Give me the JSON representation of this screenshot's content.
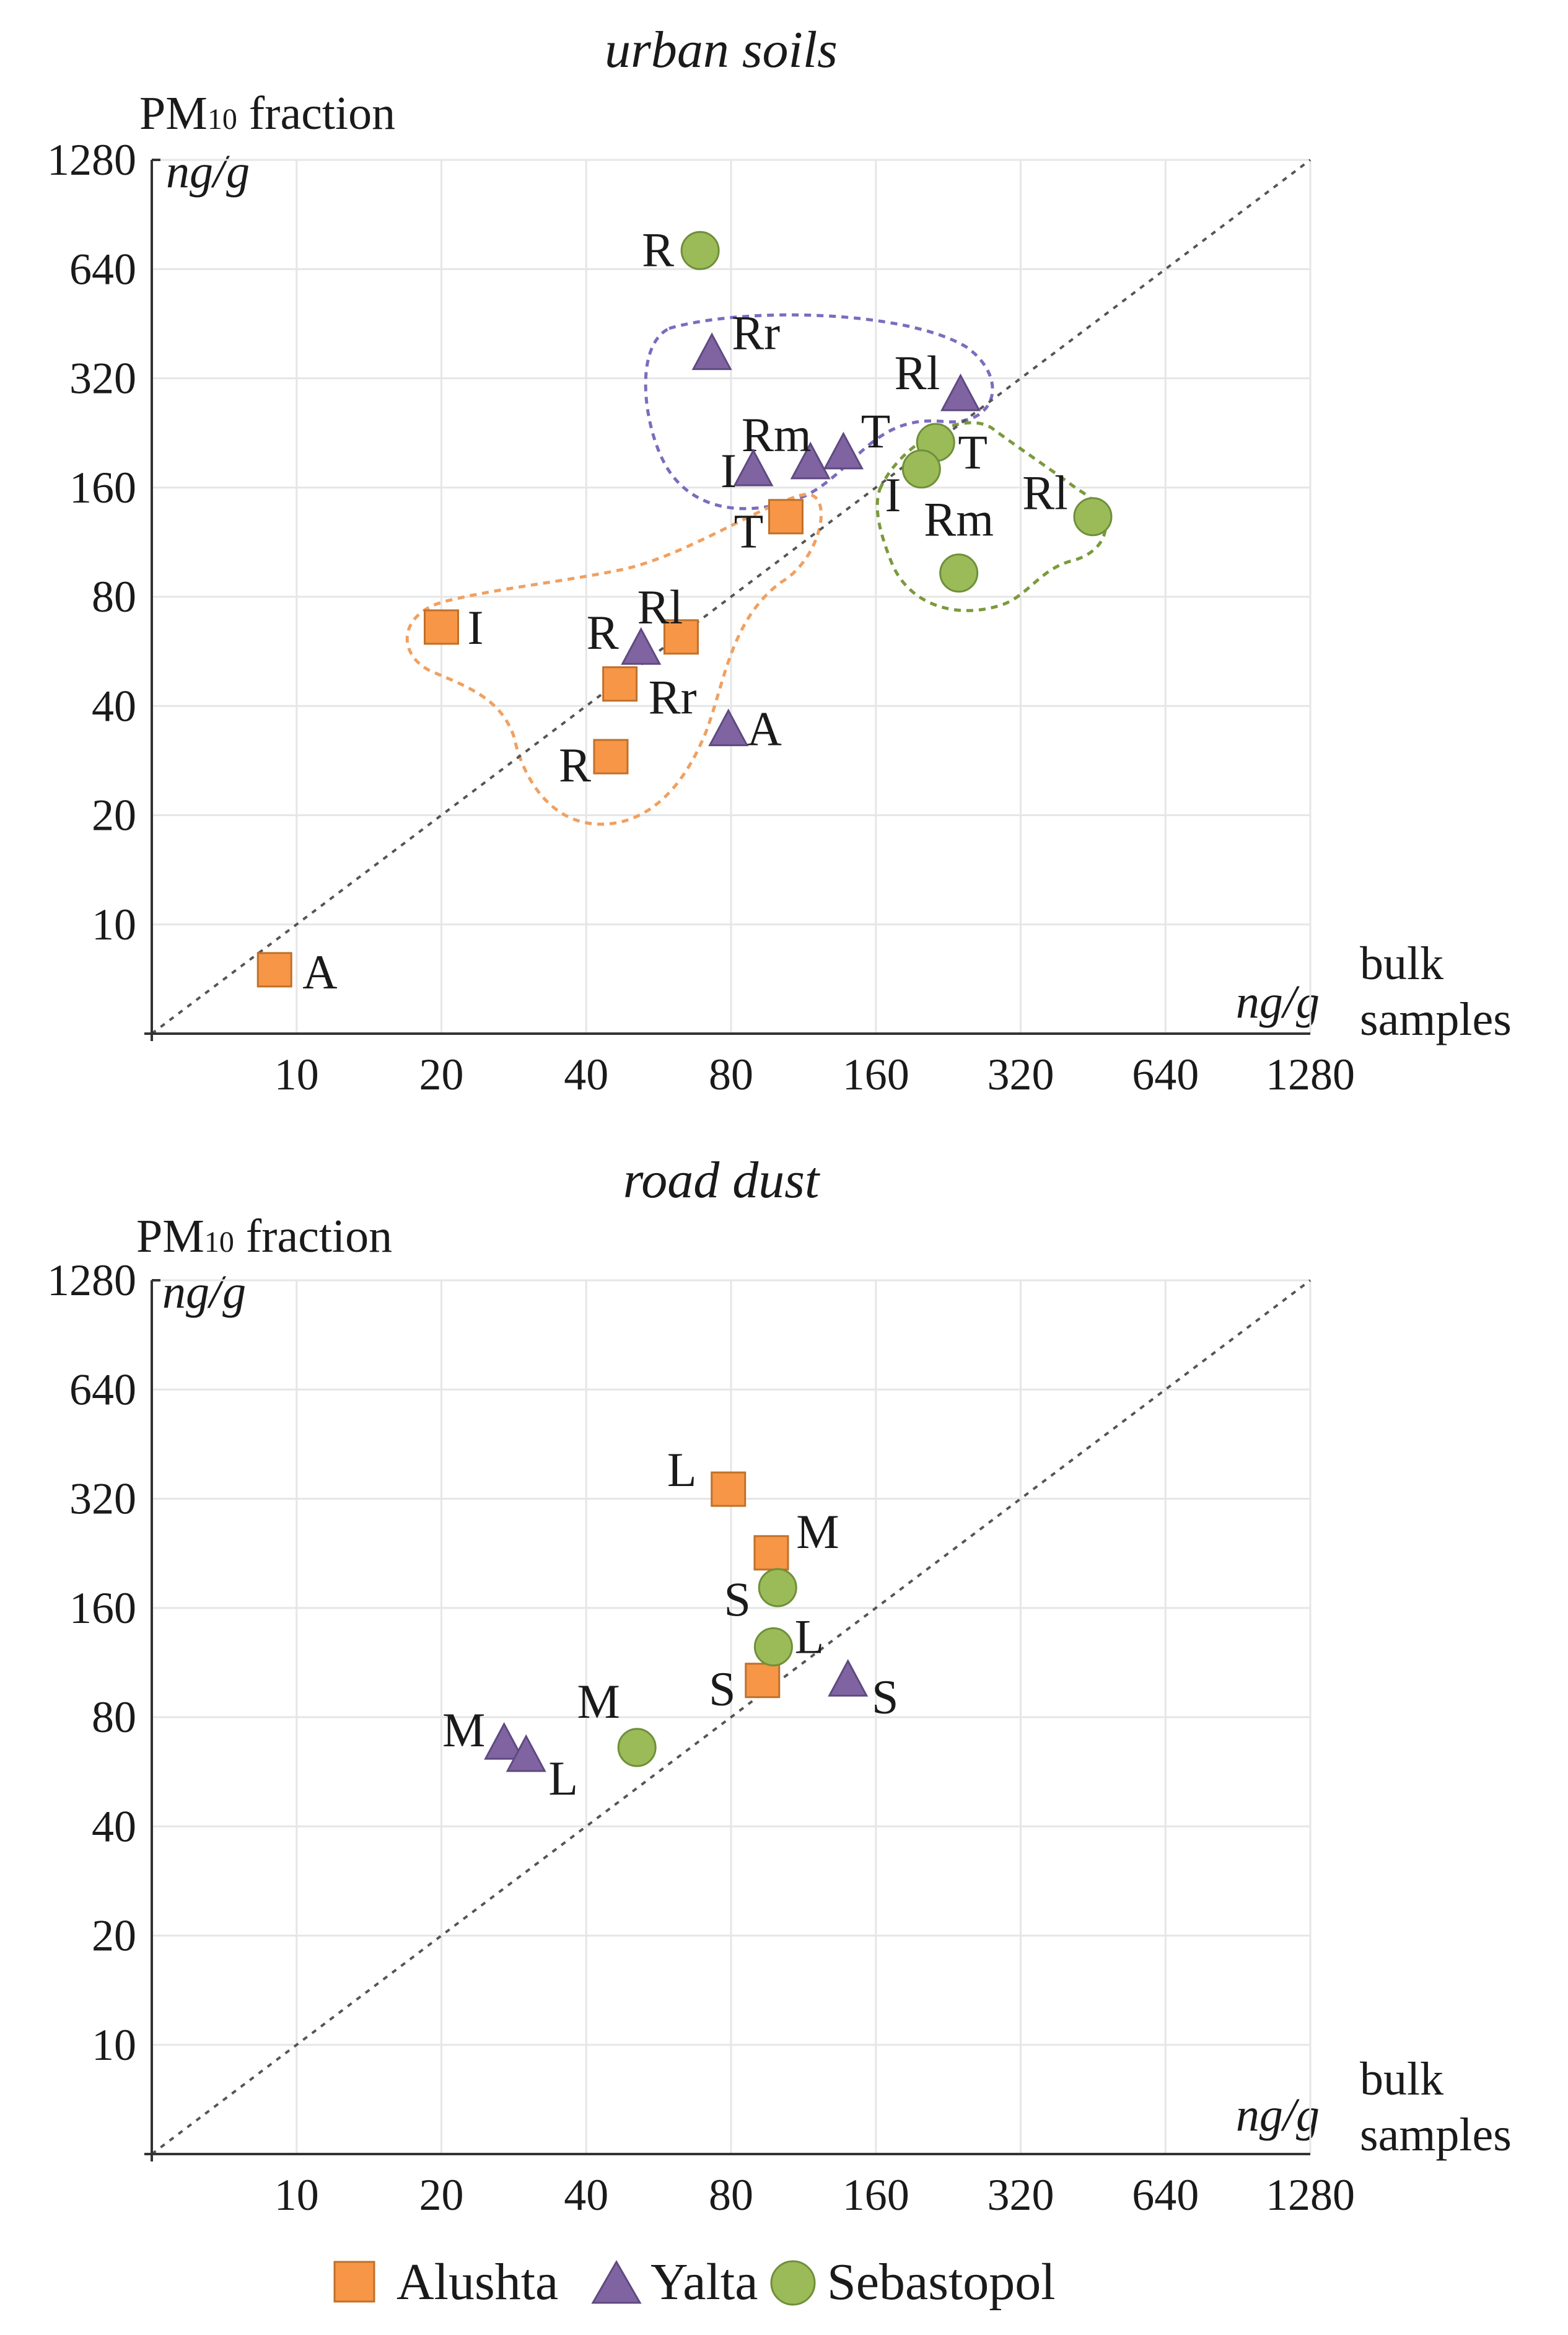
{
  "chart_data": [
    {
      "type": "scatter",
      "title": "urban soils",
      "ylabel_main": "PM",
      "ylabel_sub": "10",
      "ylabel_rest": " fraction",
      "yunit": "ng/g",
      "xunit": "ng/g",
      "xlabel_line1": "bulk",
      "xlabel_line2": "samples",
      "xscale": "log2",
      "yscale": "log2",
      "xlim": [
        5,
        1280
      ],
      "ylim": [
        5,
        1280
      ],
      "xticks": [
        "10",
        "20",
        "40",
        "80",
        "160",
        "320",
        "640",
        "1280"
      ],
      "yticks": [
        "1280",
        "640",
        "320",
        "160",
        "80",
        "40",
        "20",
        "10"
      ],
      "diagonal": "y = x",
      "series": [
        {
          "name": "Alushta",
          "marker": "square",
          "color": "#f79646",
          "points": [
            {
              "label": "A",
              "x": 9,
              "y": 7.5
            },
            {
              "label": "I",
              "x": 20,
              "y": 66
            },
            {
              "label": "Rl",
              "x": 63,
              "y": 62
            },
            {
              "label": "Rr",
              "x": 47,
              "y": 46
            },
            {
              "label": "R",
              "x": 45,
              "y": 29
            },
            {
              "label": "T",
              "x": 104,
              "y": 133
            }
          ]
        },
        {
          "name": "Yalta",
          "marker": "triangle",
          "color": "#8064a2",
          "points": [
            {
              "label": "Rr",
              "x": 73,
              "y": 370
            },
            {
              "label": "Rl",
              "x": 240,
              "y": 285
            },
            {
              "label": "Rm",
              "x": 117,
              "y": 185
            },
            {
              "label": "T",
              "x": 137,
              "y": 197
            },
            {
              "label": "I",
              "x": 89,
              "y": 177
            },
            {
              "label": "R",
              "x": 52,
              "y": 57
            },
            {
              "label": "A",
              "x": 79,
              "y": 34
            }
          ]
        },
        {
          "name": "Sebastopol",
          "marker": "circle",
          "color": "#9bbb59",
          "points": [
            {
              "label": "R",
              "x": 69,
              "y": 720
            },
            {
              "label": "T",
              "x": 213,
              "y": 213
            },
            {
              "label": "I",
              "x": 199,
              "y": 180
            },
            {
              "label": "Rl",
              "x": 452,
              "y": 133
            },
            {
              "label": "Rm",
              "x": 238,
              "y": 93
            }
          ]
        }
      ],
      "groups": [
        {
          "name": "Yalta",
          "color": "#7b6cbf"
        },
        {
          "name": "Sebastopol",
          "color": "#7a9a3c"
        },
        {
          "name": "Alushta",
          "color": "#f0a060"
        }
      ]
    },
    {
      "type": "scatter",
      "title": "road dust",
      "ylabel_main": "PM",
      "ylabel_sub": "10",
      "ylabel_rest": " fraction",
      "yunit": "ng/g",
      "xunit": "ng/g",
      "xlabel_line1": "bulk",
      "xlabel_line2": "samples",
      "xscale": "log2",
      "yscale": "log2",
      "xlim": [
        5,
        1280
      ],
      "ylim": [
        5,
        1280
      ],
      "xticks": [
        "10",
        "20",
        "40",
        "80",
        "160",
        "320",
        "640",
        "1280"
      ],
      "yticks": [
        "1280",
        "640",
        "320",
        "160",
        "80",
        "40",
        "20",
        "10"
      ],
      "diagonal": "y = x",
      "series": [
        {
          "name": "Alushta",
          "marker": "square",
          "color": "#f79646",
          "points": [
            {
              "label": "L",
              "x": 79,
              "y": 340
            },
            {
              "label": "M",
              "x": 97,
              "y": 227
            },
            {
              "label": "S",
              "x": 93,
              "y": 101
            }
          ]
        },
        {
          "name": "Yalta",
          "marker": "triangle",
          "color": "#8064a2",
          "points": [
            {
              "label": "S",
              "x": 140,
              "y": 100
            },
            {
              "label": "M",
              "x": 27,
              "y": 67
            },
            {
              "label": "L",
              "x": 30,
              "y": 62
            }
          ]
        },
        {
          "name": "Sebastopol",
          "marker": "circle",
          "color": "#9bbb59",
          "points": [
            {
              "label": "S",
              "x": 100,
              "y": 182
            },
            {
              "label": "L",
              "x": 98,
              "y": 125
            },
            {
              "label": "M",
              "x": 51,
              "y": 66
            }
          ]
        }
      ]
    }
  ],
  "legend": [
    {
      "name": "Alushta",
      "marker": "square",
      "color": "#f79646"
    },
    {
      "name": "Yalta",
      "marker": "triangle",
      "color": "#8064a2"
    },
    {
      "name": "Sebastopol",
      "marker": "circle",
      "color": "#9bbb59"
    }
  ]
}
